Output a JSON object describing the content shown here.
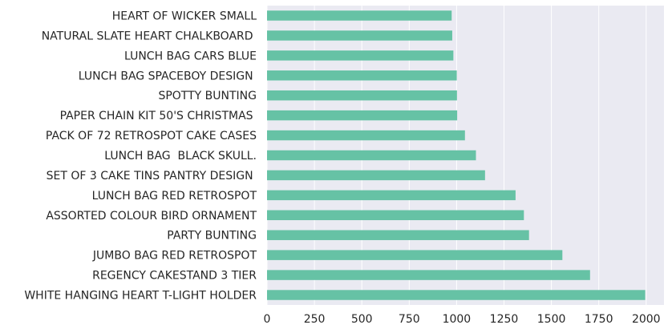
{
  "chart_data": {
    "type": "bar",
    "orientation": "horizontal",
    "categories": [
      "WHITE HANGING HEART T-LIGHT HOLDER",
      "REGENCY CAKESTAND 3 TIER",
      "JUMBO BAG RED RETROSPOT",
      "PARTY BUNTING",
      "ASSORTED COLOUR BIRD ORNAMENT",
      "LUNCH BAG RED RETROSPOT",
      "SET OF 3 CAKE TINS PANTRY DESIGN ",
      "LUNCH BAG  BLACK SKULL.",
      "PACK OF 72 RETROSPOT CAKE CASES",
      "PAPER CHAIN KIT 50'S CHRISTMAS ",
      "SPOTTY BUNTING",
      "LUNCH BAG SPACEBOY DESIGN ",
      "LUNCH BAG CARS BLUE",
      "NATURAL SLATE HEART CHALKBOARD ",
      "HEART OF WICKER SMALL"
    ],
    "values": [
      1995,
      1704,
      1558,
      1382,
      1355,
      1311,
      1150,
      1102,
      1044,
      1003,
      1002,
      1001,
      983,
      977,
      974
    ],
    "title": "",
    "xlabel": "",
    "ylabel": "",
    "xlim": [
      0,
      2094
    ],
    "xticks": [
      0,
      250,
      500,
      750,
      1000,
      1250,
      1500,
      1750,
      2000
    ],
    "grid": true,
    "bar_color": "#66c2a5",
    "background_color": "#eaeaf2",
    "grid_color": "#ffffff"
  }
}
